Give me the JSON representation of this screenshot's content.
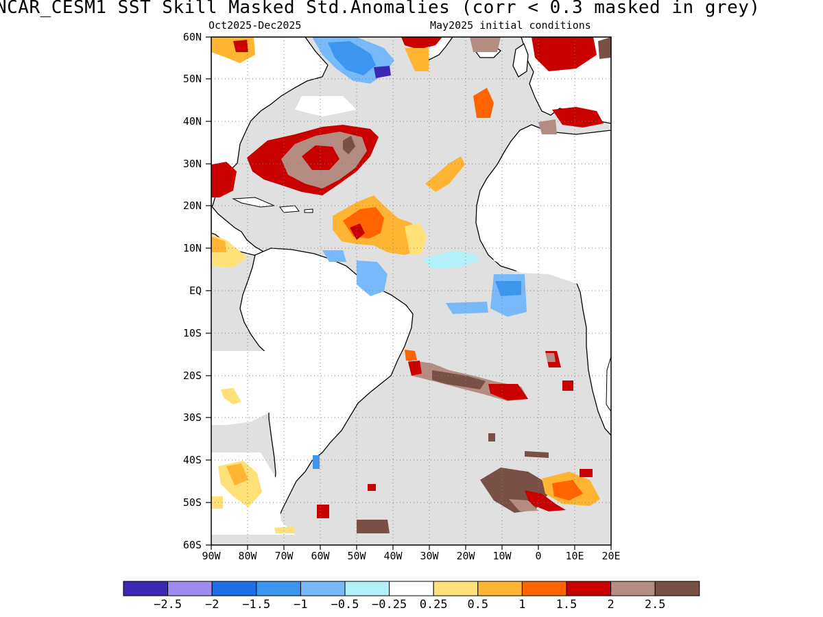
{
  "title": "NCAR_CESM1   SST Skill Masked Std.Anomalies (corr < 0.3 masked in grey)",
  "subtitle_left": "Oct2025-Dec2025",
  "subtitle_right": "May2025 initial conditions",
  "lat_labels": [
    "60N",
    "50N",
    "40N",
    "30N",
    "20N",
    "10N",
    "EQ",
    "10S",
    "20S",
    "30S",
    "40S",
    "50S",
    "60S"
  ],
  "lon_labels": [
    "90W",
    "80W",
    "70W",
    "60W",
    "50W",
    "40W",
    "30W",
    "20W",
    "10W",
    "0",
    "10E",
    "20E"
  ],
  "colorbar": {
    "colors": [
      "#3c28b4",
      "#a08cf0",
      "#1e6ee6",
      "#3c96f0",
      "#78b9fa",
      "#b4f0fa",
      "#ffffff",
      "#ffe178",
      "#ffb432",
      "#ff6400",
      "#c80000",
      "#b48c82",
      "#785046"
    ],
    "labels": [
      "-2.5",
      "-2",
      "-1.5",
      "-1",
      "-0.5",
      "-0.25",
      "0.25",
      "0.5",
      "1",
      "1.5",
      "2",
      "2.5"
    ]
  },
  "colors": {
    "mask_grey": "#e0e0e0",
    "land": "#ffffff",
    "coast": "#000000"
  }
}
